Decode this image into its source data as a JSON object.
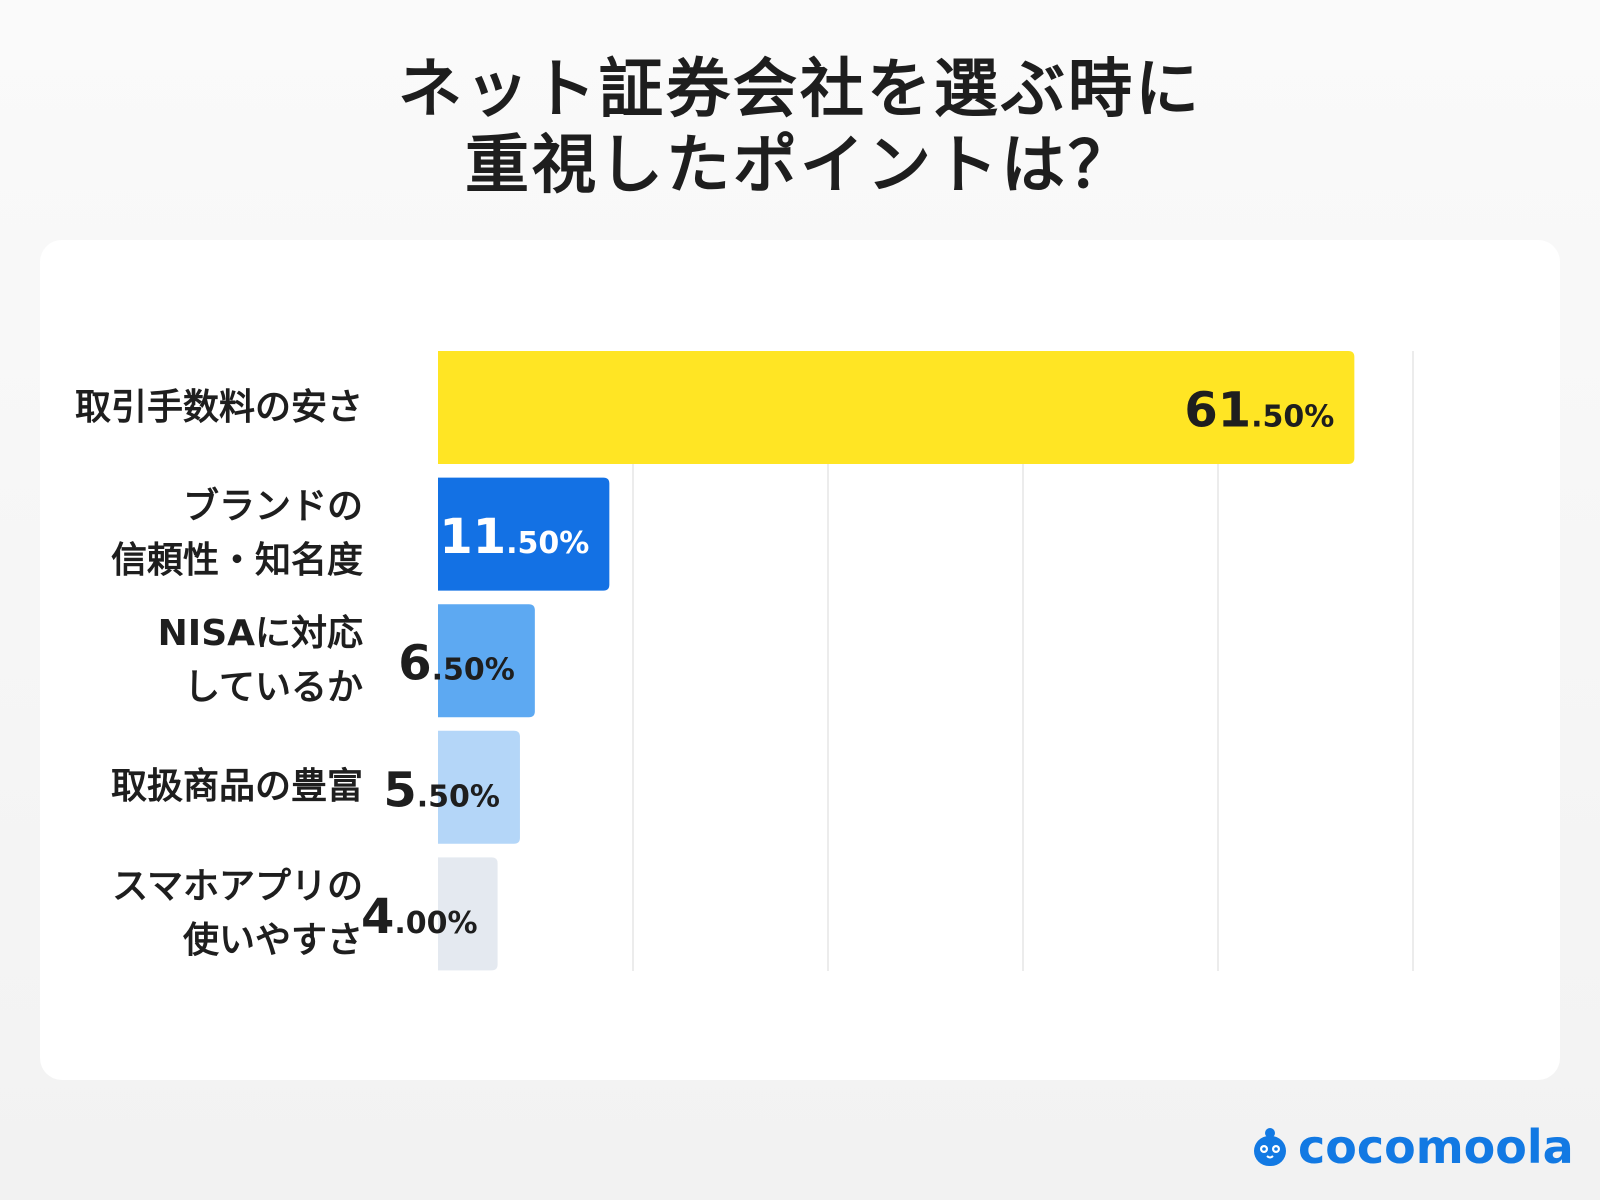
{
  "title": {
    "line1": "ネット証券会社を選ぶ時に",
    "line2": "重視したポイントは？"
  },
  "brand": {
    "name": "cocomoola",
    "color": "#1279e3"
  },
  "chart_data": {
    "type": "bar",
    "orientation": "horizontal",
    "categories": [
      [
        "取引手数料の安さ"
      ],
      [
        "ブランドの",
        "信頼性・知名度"
      ],
      [
        "NISAに対応",
        "しているか"
      ],
      [
        "取扱商品の豊富"
      ],
      [
        "スマホアプリの",
        "使いやすさ"
      ]
    ],
    "series": [
      {
        "values": [
          61.5,
          11.5,
          6.5,
          5.5,
          4.0
        ],
        "labels_int": [
          "61",
          "11",
          "6",
          "5",
          "4"
        ],
        "labels_dec": [
          ".50%",
          ".50%",
          ".50%",
          ".50%",
          ".00%"
        ]
      }
    ],
    "colors": [
      "#ffe524",
      "#1371e4",
      "#5da9f2",
      "#b4d6f8",
      "#e4e9f0"
    ],
    "label_colors": [
      "#1e1e1e",
      "#ffffff",
      "#1e1e1e",
      "#1e1e1e",
      "#1e1e1e"
    ],
    "grid": true,
    "legend": "none"
  }
}
